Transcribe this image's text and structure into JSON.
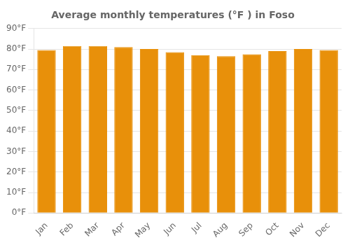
{
  "chart_data": {
    "type": "bar",
    "title": "Average monthly temperatures (°F ) in Foso",
    "categories": [
      "Jan",
      "Feb",
      "Mar",
      "Apr",
      "May",
      "Jun",
      "Jul",
      "Aug",
      "Sep",
      "Oct",
      "Nov",
      "Dec"
    ],
    "values": [
      79.5,
      81.5,
      81.5,
      81.0,
      80.0,
      78.5,
      77.0,
      76.5,
      77.5,
      79.0,
      80.0,
      79.5
    ],
    "color": "#E8900A",
    "ylim": [
      0,
      90
    ],
    "yticks": [
      {
        "value": 0,
        "label": "0°F"
      },
      {
        "value": 10,
        "label": "10°F"
      },
      {
        "value": 20,
        "label": "20°F"
      },
      {
        "value": 30,
        "label": "30°F"
      },
      {
        "value": 40,
        "label": "40°F"
      },
      {
        "value": 50,
        "label": "50°F"
      },
      {
        "value": 60,
        "label": "60°F"
      },
      {
        "value": 70,
        "label": "70°F"
      },
      {
        "value": 80,
        "label": "80°F"
      },
      {
        "value": 90,
        "label": "90°F"
      }
    ],
    "grid": true
  }
}
